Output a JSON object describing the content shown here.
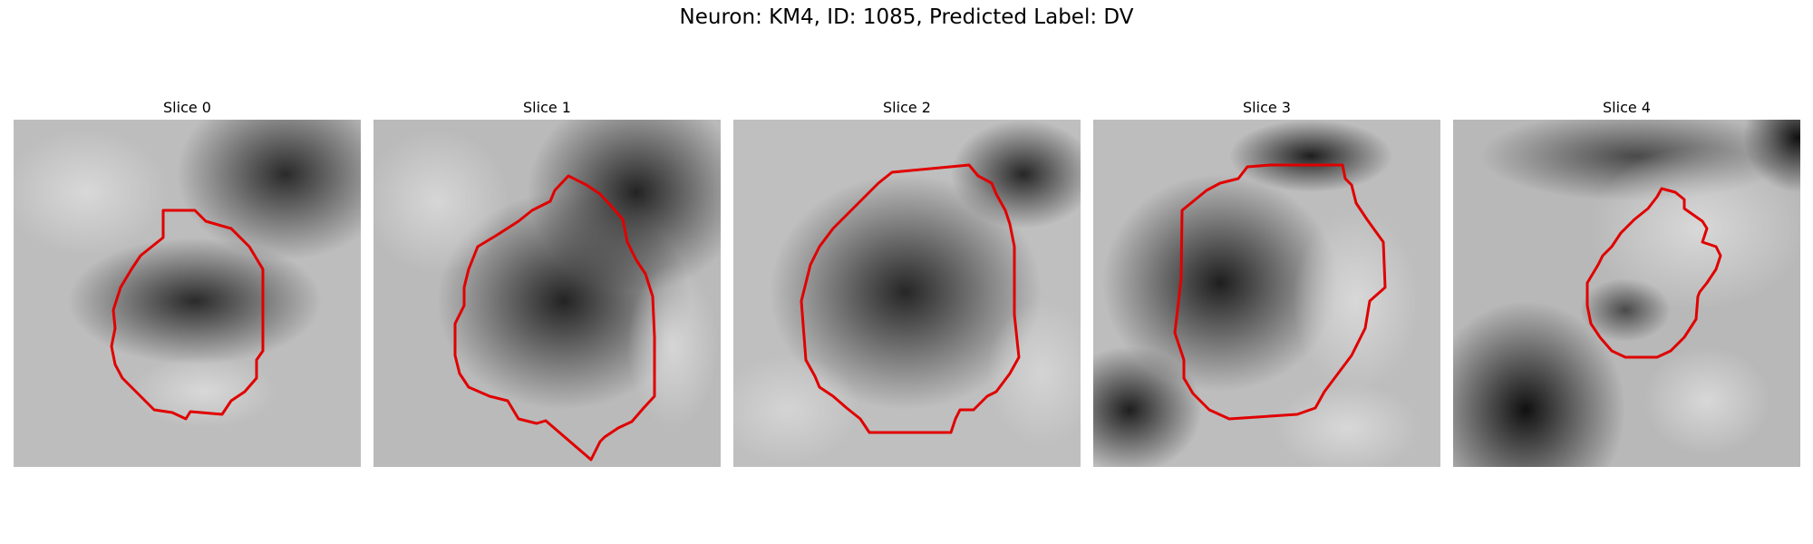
{
  "figure": {
    "title": "Neuron: KM4, ID: 1085, Predicted Label: DV",
    "contour_color": "#ff0000"
  },
  "panels": [
    {
      "title": "Slice 0"
    },
    {
      "title": "Slice 1"
    },
    {
      "title": "Slice 2"
    },
    {
      "title": "Slice 3"
    },
    {
      "title": "Slice 4"
    }
  ]
}
